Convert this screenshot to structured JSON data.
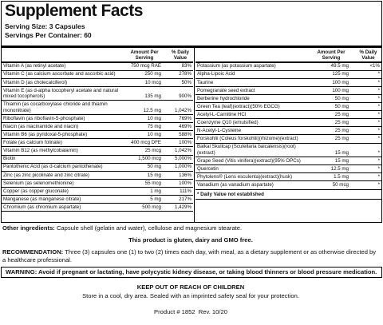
{
  "header": {
    "title": "Supplement Facts",
    "serving_size": "Serving Size: 3 Capsules",
    "servings_per_container": "Servings Per Container: 60"
  },
  "left_table": {
    "columns": [
      "Amount Per Serving",
      "% Daily Value"
    ],
    "rows": [
      [
        "Vitamin A (as retinyl acetate)",
        "750 mcg RAE",
        "83%"
      ],
      [
        "Vitamin C (as calcium ascorbate and ascorbic acid)",
        "250 mg",
        "278%"
      ],
      [
        "Vitamin D (as cholecalciferol)",
        "10 mcg",
        "50%"
      ],
      [
        "Vitamin E (as d-alpha tocopheryl acetate and natural mixed tocopherols)",
        "135 mg",
        "900%"
      ],
      [
        "Thiamin (as cocarboxylase chloride and thiamin mononitrate)",
        "12.5 mg",
        "1,042%"
      ],
      [
        "Riboflavin (as riboflavin-5-phosphate)",
        "10 mg",
        "769%"
      ],
      [
        "Niacin (as niacinamide and niacin)",
        "75 mg",
        "469%"
      ],
      [
        "Vitamin B6 (as pyridoxal-5-phosphate)",
        "10 mg",
        "588%"
      ],
      [
        "Folate (as calcium folinate)",
        "400 mcg DFE",
        "100%"
      ],
      [
        "Vitamin B12 (as methylcobalamin)",
        "25 mcg",
        "1,042%"
      ],
      [
        "Biotin",
        "1,500 mcg",
        "5,000%"
      ],
      [
        "Pantothenic Acid (as d-calcium pantothenate)",
        "50 mg",
        "1,000%"
      ],
      [
        "Zinc (as zinc picolinate and zinc citrate)",
        "15 mg",
        "136%"
      ],
      [
        "Selenium (as selenomethionine)",
        "55 mcg",
        "100%"
      ],
      [
        "Copper (as copper gluconate)",
        "1 mg",
        "111%"
      ],
      [
        "Manganese (as manganese citrate)",
        "5 mg",
        "217%"
      ],
      [
        "Chromium (as chromium aspartate)",
        "500 mcg",
        "1,429%"
      ]
    ]
  },
  "right_table": {
    "columns": [
      "Amount Per Serving",
      "% Daily Value"
    ],
    "rows": [
      [
        "Potassium (as potassium aspartate)",
        "49.5 mg",
        "<1%"
      ],
      [
        "Alpha-Lipoic Acid",
        "125 mg",
        "*"
      ],
      [
        "Taurine",
        "100 mg",
        "*"
      ],
      [
        "Pomegranate seed extract",
        "100 mg",
        "*"
      ],
      [
        "Berberine hydrochloride",
        "50 mg",
        "*"
      ],
      [
        "Green Tea (leaf)(extract)(50% EGCG)",
        "50 mg",
        "*"
      ],
      [
        "Acetyl-L-Carnitine HCl",
        "25 mg",
        "*"
      ],
      [
        "Coenzyme Q10 (emulsified)",
        "25 mg",
        "*"
      ],
      [
        "N-Acetyl-L-Cysteine",
        "25 mg",
        "*"
      ],
      [
        "Forskohlii (Coleus forskohlii)(rhizome)(extract)",
        "25 mg",
        "*"
      ],
      [
        "Baikal Skullcap (Scutellaria baicalensis)(root)(extract)",
        "15 mg",
        "*"
      ],
      [
        "Grape Seed (Vitis vinifera)(extract)(95% OPCs)",
        "15 mg",
        "*"
      ],
      [
        "Quercetin",
        "12.5 mg",
        "*"
      ],
      [
        "Phytolens® (Lens esculenta)(extract)(husk)",
        "1.5 mg",
        "*"
      ],
      [
        "Vanadium (as vanadium aspartate)",
        "50 mcg",
        "*"
      ]
    ],
    "footnote": "* Daily Value not established"
  },
  "other_ingredients": {
    "label": "Other ingredients:",
    "text": "Capsule shell (gelatin and water), cellulose and magnesium stearate."
  },
  "allergen_statement": "This product is gluten, dairy and GMO free.",
  "recommendation": {
    "label": "RECOMMENDATION:",
    "text": "Three (3) capsules one (1) to two (2) times each day, with meal, as a dietary supplement or as otherwise directed by a healthcare professional."
  },
  "warning": "WARNING: Avoid if pregnant or lactating, have polycystic kidney disease, or taking blood thinners or blood pressure medication.",
  "keep_out": "KEEP OUT OF REACH OF CHILDREN",
  "storage": "Store in a cool, dry area. Sealed with an imprinted safety seal for your protection.",
  "product_info": "Product # 1852  Rev. 10/20"
}
